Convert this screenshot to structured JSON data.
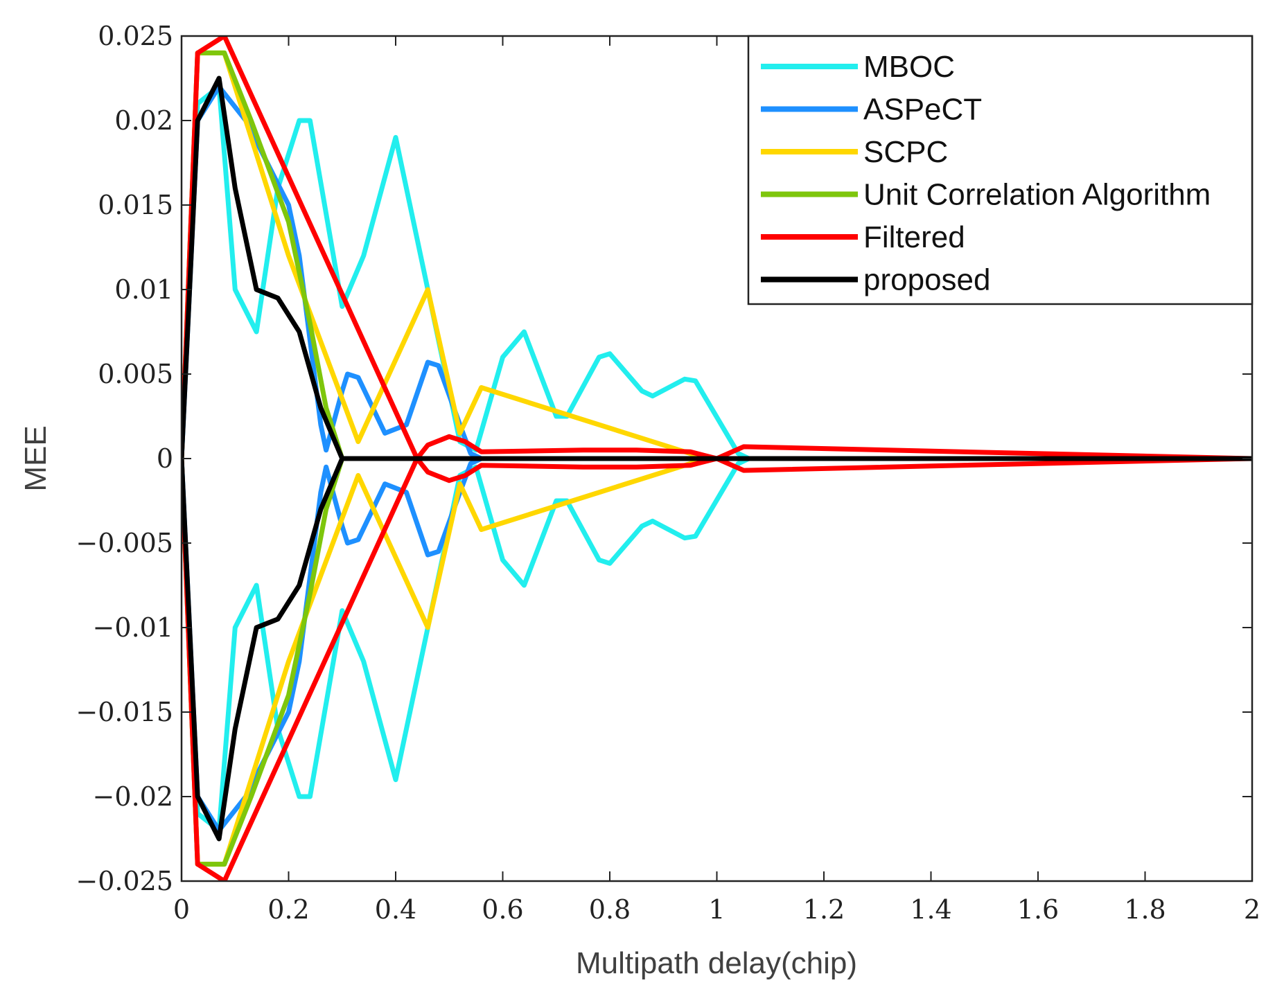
{
  "chart_data": {
    "type": "line",
    "title": "",
    "xlabel": "Multipath delay(chip)",
    "ylabel": "MEE",
    "xlim": [
      0,
      2
    ],
    "ylim": [
      -0.025,
      0.025
    ],
    "xticks": [
      0,
      0.2,
      0.4,
      0.6,
      0.8,
      1,
      1.2,
      1.4,
      1.6,
      1.8,
      2
    ],
    "xtick_labels": [
      "0",
      "0.2",
      "0.4",
      "0.6",
      "0.8",
      "1",
      "1.2",
      "1.4",
      "1.6",
      "1.8",
      "2"
    ],
    "yticks": [
      -0.025,
      -0.02,
      -0.015,
      -0.01,
      -0.005,
      0,
      0.005,
      0.01,
      0.015,
      0.02,
      0.025
    ],
    "ytick_labels": [
      "−0.025",
      "−0.02",
      "−0.015",
      "−0.01",
      "−0.005",
      "0",
      "0.005",
      "0.01",
      "0.015",
      "0.02",
      "0.025"
    ],
    "legend_position": "top-right",
    "grid": false,
    "series": [
      {
        "name": "MBOC",
        "color": "#22eeee",
        "envelope": [
          [
            0,
            0
          ],
          [
            0.03,
            0.021
          ],
          [
            0.07,
            0.022
          ],
          [
            0.1,
            0.01
          ],
          [
            0.14,
            0.0075
          ],
          [
            0.18,
            0.016
          ],
          [
            0.22,
            0.02
          ],
          [
            0.24,
            0.02
          ],
          [
            0.3,
            0.009
          ],
          [
            0.34,
            0.012
          ],
          [
            0.4,
            0.019
          ],
          [
            0.46,
            0.01
          ],
          [
            0.52,
            0.001
          ],
          [
            0.55,
            0.0005
          ],
          [
            0.6,
            0.006
          ],
          [
            0.64,
            0.0075
          ],
          [
            0.7,
            0.0025
          ],
          [
            0.72,
            0.0025
          ],
          [
            0.78,
            0.006
          ],
          [
            0.8,
            0.0062
          ],
          [
            0.86,
            0.004
          ],
          [
            0.88,
            0.0037
          ],
          [
            0.94,
            0.0047
          ],
          [
            0.96,
            0.0046
          ],
          [
            1.04,
            0.0003
          ],
          [
            1.06,
            0
          ],
          [
            2,
            0
          ]
        ]
      },
      {
        "name": "ASPeCT",
        "color": "#1e90ff",
        "envelope": [
          [
            0,
            0
          ],
          [
            0.03,
            0.02
          ],
          [
            0.07,
            0.022
          ],
          [
            0.12,
            0.02
          ],
          [
            0.2,
            0.015
          ],
          [
            0.22,
            0.012
          ],
          [
            0.26,
            0.002
          ],
          [
            0.27,
            0.0005
          ],
          [
            0.3,
            0.004
          ],
          [
            0.31,
            0.005
          ],
          [
            0.33,
            0.0048
          ],
          [
            0.38,
            0.0015
          ],
          [
            0.42,
            0.002
          ],
          [
            0.46,
            0.0057
          ],
          [
            0.48,
            0.0055
          ],
          [
            0.52,
            0.002
          ],
          [
            0.54,
            0.0003
          ],
          [
            0.56,
            0
          ],
          [
            2,
            0
          ]
        ]
      },
      {
        "name": "SCPC",
        "color": "#ffd700",
        "envelope": [
          [
            0,
            0
          ],
          [
            0.03,
            0.024
          ],
          [
            0.08,
            0.024
          ],
          [
            0.2,
            0.012
          ],
          [
            0.33,
            0.001
          ],
          [
            0.46,
            0.01
          ],
          [
            0.52,
            0.0015
          ],
          [
            0.56,
            0.0042
          ],
          [
            0.96,
            0.0002
          ],
          [
            0.98,
            0
          ],
          [
            2,
            0
          ]
        ]
      },
      {
        "name": "Unit Correlation Algorithm",
        "color": "#7ec60c",
        "envelope": [
          [
            0,
            0
          ],
          [
            0.03,
            0.024
          ],
          [
            0.08,
            0.024
          ],
          [
            0.13,
            0.02
          ],
          [
            0.2,
            0.014
          ],
          [
            0.24,
            0.008
          ],
          [
            0.27,
            0.003
          ],
          [
            0.3,
            0
          ],
          [
            2,
            0
          ]
        ]
      },
      {
        "name": "Filtered",
        "color": "#ff0000",
        "envelope": [
          [
            0,
            0
          ],
          [
            0.03,
            0.024
          ],
          [
            0.08,
            0.025
          ],
          [
            0.44,
            0
          ],
          [
            0.46,
            0.0008
          ],
          [
            0.5,
            0.0013
          ],
          [
            0.53,
            0.001
          ],
          [
            0.56,
            0.0004
          ],
          [
            0.75,
            0.0005
          ],
          [
            0.85,
            0.0005
          ],
          [
            0.95,
            0.0004
          ],
          [
            1,
            0
          ],
          [
            1.05,
            0.0007
          ],
          [
            2,
            0
          ]
        ]
      },
      {
        "name": "proposed",
        "color": "#000000",
        "envelope": [
          [
            0,
            0
          ],
          [
            0.03,
            0.02
          ],
          [
            0.07,
            0.0225
          ],
          [
            0.1,
            0.016
          ],
          [
            0.14,
            0.01
          ],
          [
            0.18,
            0.0095
          ],
          [
            0.22,
            0.0075
          ],
          [
            0.26,
            0.003
          ],
          [
            0.3,
            0
          ],
          [
            2,
            0
          ]
        ]
      }
    ]
  }
}
